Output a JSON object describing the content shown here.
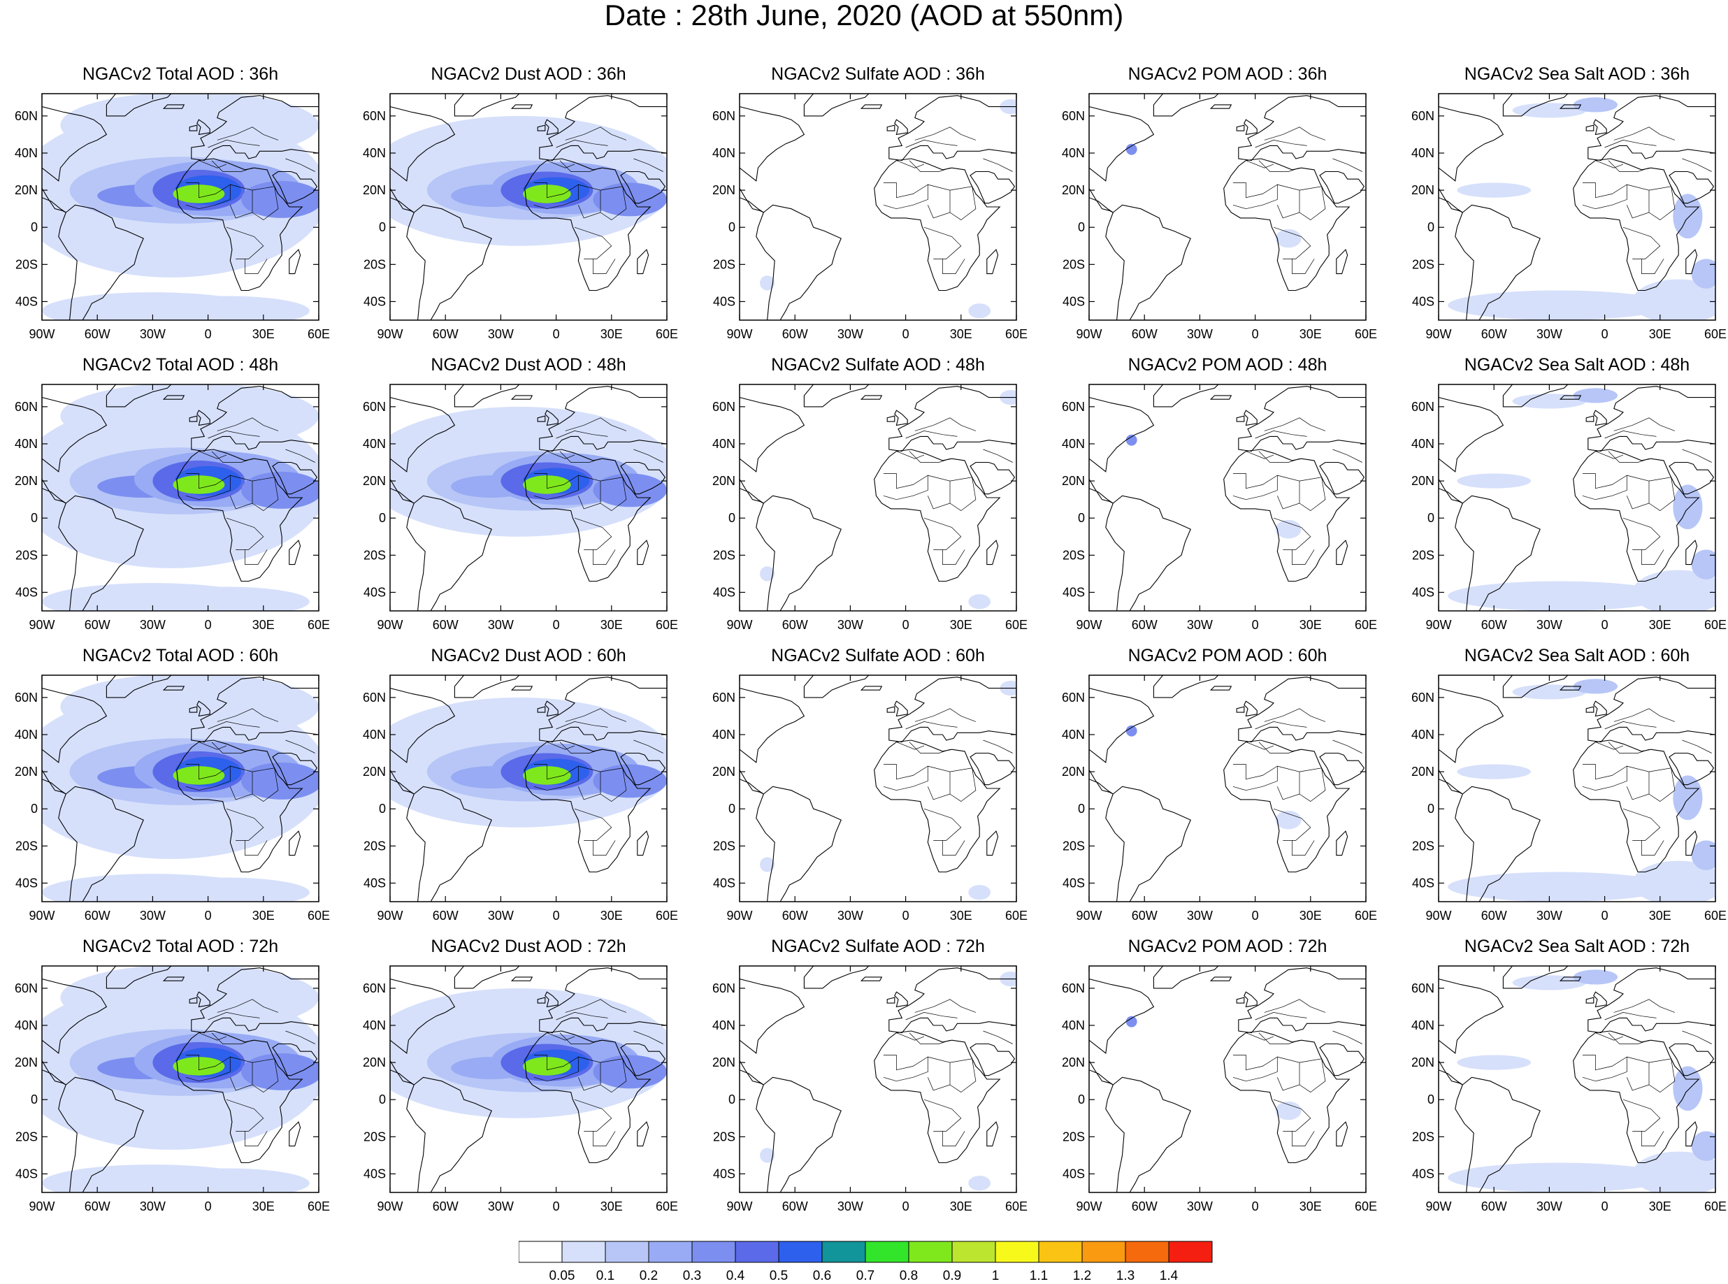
{
  "title": "Date : 28th June, 2020 (AOD at 550nm)",
  "rows": [
    [
      "NGACv2 Total AOD : 36h",
      "NGACv2 Dust AOD : 36h",
      "NGACv2 Sulfate AOD : 36h",
      "NGACv2 POM AOD : 36h",
      "NGACv2 Sea Salt AOD : 36h"
    ],
    [
      "NGACv2 Total AOD : 48h",
      "NGACv2 Dust AOD : 48h",
      "NGACv2 Sulfate AOD : 48h",
      "NGACv2 POM AOD : 48h",
      "NGACv2 Sea Salt AOD : 48h"
    ],
    [
      "NGACv2 Total AOD : 60h",
      "NGACv2 Dust AOD : 60h",
      "NGACv2 Sulfate AOD : 60h",
      "NGACv2 POM AOD : 60h",
      "NGACv2 Sea Salt AOD : 60h"
    ],
    [
      "NGACv2 Total AOD : 72h",
      "NGACv2 Dust AOD : 72h",
      "NGACv2 Sulfate AOD : 72h",
      "NGACv2 POM AOD : 72h",
      "NGACv2 Sea Salt  AOD : 72h"
    ]
  ],
  "lat_labels": [
    "60N",
    "40N",
    "20N",
    "0",
    "20S",
    "40S"
  ],
  "lon_labels": [
    "90W",
    "60W",
    "30W",
    "0",
    "30E",
    "60E"
  ],
  "colorbar": {
    "labels": [
      "0.05",
      "0.1",
      "0.2",
      "0.3",
      "0.4",
      "0.5",
      "0.6",
      "0.7",
      "0.8",
      "0.9",
      "1",
      "1.1",
      "1.2",
      "1.3",
      "1.4"
    ],
    "colors": [
      "#ffffff",
      "#d6e0fb",
      "#b7c6f7",
      "#98abf4",
      "#7c8ff0",
      "#5a6ae9",
      "#2d60ec",
      "#11949a",
      "#33e52a",
      "#7fe81d",
      "#bce52f",
      "#f7f91b",
      "#fbc313",
      "#fa9a11",
      "#f56a0d",
      "#f41f10"
    ]
  },
  "fields": {
    "total": "high",
    "dust": "dust",
    "sulfate": "low",
    "pom": "pom",
    "seasalt": "seasalt"
  }
}
